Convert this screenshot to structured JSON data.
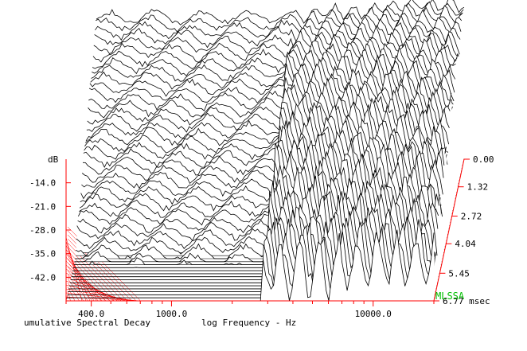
{
  "chart_data": {
    "type": "waterfall",
    "title": "umulative Spectral Decay",
    "xlabel": "log Frequency - Hz",
    "zlabel": "dB",
    "x_tick_labels": [
      "400.0",
      "1000.0",
      "10000.0"
    ],
    "x_tick_values": [
      400,
      1000,
      10000
    ],
    "x_range": [
      300,
      20000
    ],
    "z_tick_labels": [
      "-14.0",
      "-21.0",
      "-28.0",
      "-35.0",
      "-42.0"
    ],
    "z_tick_values": [
      -14,
      -21,
      -28,
      -35,
      -42
    ],
    "z_range": [
      -49,
      -7
    ],
    "time_tick_labels": [
      "0.00",
      "1.32",
      "2.72",
      "4.04",
      "5.45",
      "6.77 msec"
    ],
    "time_tick_values": [
      0.0,
      1.32,
      2.72,
      4.04,
      5.45,
      6.77
    ],
    "time_range": [
      0.0,
      6.77
    ],
    "slice_count": 48,
    "first_slice_profile": {
      "frequency_hz": [
        300,
        400,
        600,
        800,
        1000,
        1300,
        1800,
        2500,
        3300,
        4000,
        5000,
        6000,
        7000,
        8000,
        9000,
        10000,
        12000,
        15000,
        18000,
        20000
      ],
      "level_db": [
        -7.5,
        -6.8,
        -6.5,
        -6.9,
        -7.2,
        -6.6,
        -7.0,
        -6.2,
        -6.7,
        -5.4,
        -5.2,
        -5.6,
        -5.0,
        -3.8,
        -4.2,
        -3.0,
        -3.2,
        -3.6,
        -3.4,
        -3.5
      ]
    },
    "watermark": "MLSSA"
  },
  "colors": {
    "axis_red": "#ff0000",
    "trace": "#000000",
    "watermark": "#00c000"
  }
}
